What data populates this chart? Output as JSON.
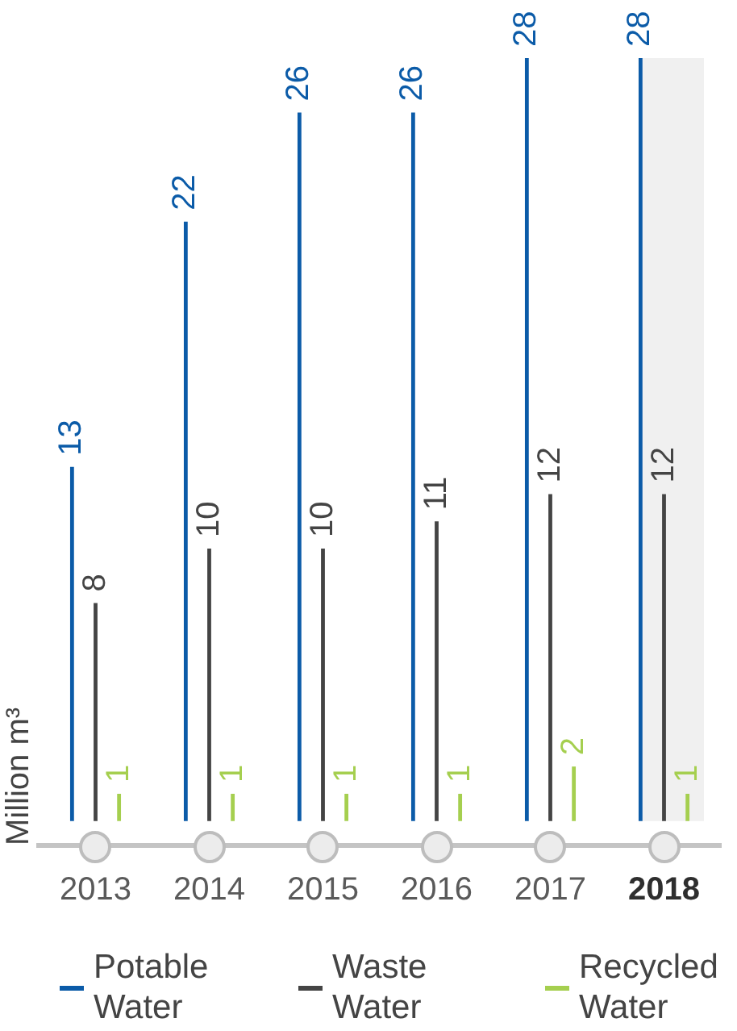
{
  "chart_data": {
    "type": "bar",
    "ylabel": "Million m³",
    "categories": [
      "2013",
      "2014",
      "2015",
      "2016",
      "2017",
      "2018"
    ],
    "series": [
      {
        "name": "Potable Water",
        "color": "#0b5ba8",
        "values": [
          13,
          22,
          26,
          26,
          28,
          28
        ]
      },
      {
        "name": "Waste Water",
        "color": "#444444",
        "values": [
          8,
          10,
          10,
          11,
          12,
          12
        ]
      },
      {
        "name": "Recycled Water",
        "color": "#a5cf4f",
        "values": [
          1,
          1,
          1,
          1,
          2,
          1
        ]
      }
    ],
    "data_labels": true,
    "legend": "bottom",
    "tick_labels": "x",
    "bands": [
      {
        "axis": "x",
        "from": "2018",
        "to": "2018",
        "color": "#f0f0f0"
      }
    ]
  }
}
